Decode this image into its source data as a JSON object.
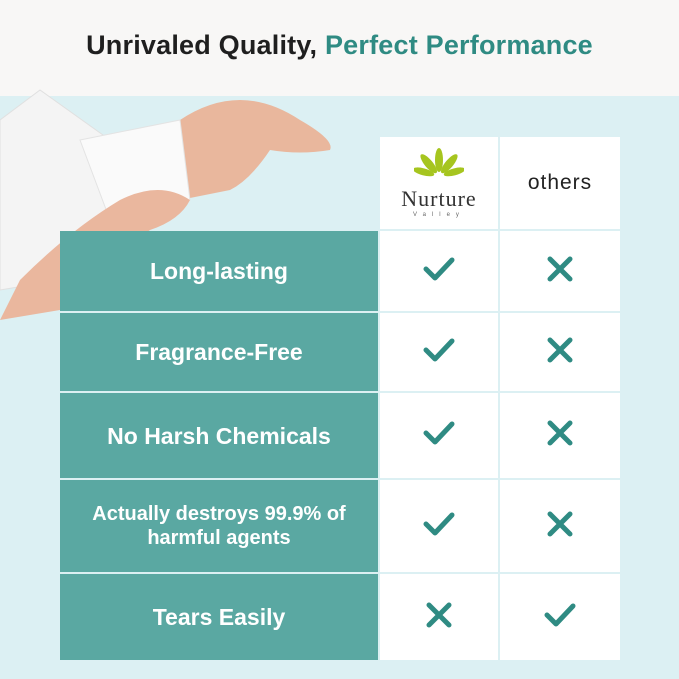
{
  "header": {
    "title_part1": "Unrivaled Quality, ",
    "title_part2": "Perfect Performance"
  },
  "colors": {
    "teal": "#5aa8a2",
    "accent": "#2f8b83",
    "background": "#dcf0f3"
  },
  "table": {
    "columns": [
      {
        "logo_text": "Nurture",
        "logo_subtext": "Valley"
      },
      {
        "label": "others"
      }
    ],
    "rows": [
      {
        "feature": "Long-lasting",
        "brand": "check-icon",
        "others": "x-icon"
      },
      {
        "feature": "Fragrance-Free",
        "brand": "check-icon",
        "others": "x-icon"
      },
      {
        "feature": "No Harsh Chemicals",
        "brand": "check-icon",
        "others": "x-icon"
      },
      {
        "feature": "Actually destroys 99.9% of harmful agents",
        "brand": "check-icon",
        "others": "x-icon"
      },
      {
        "feature": "Tears Easily",
        "brand": "x-icon",
        "others": "check-icon"
      }
    ]
  }
}
